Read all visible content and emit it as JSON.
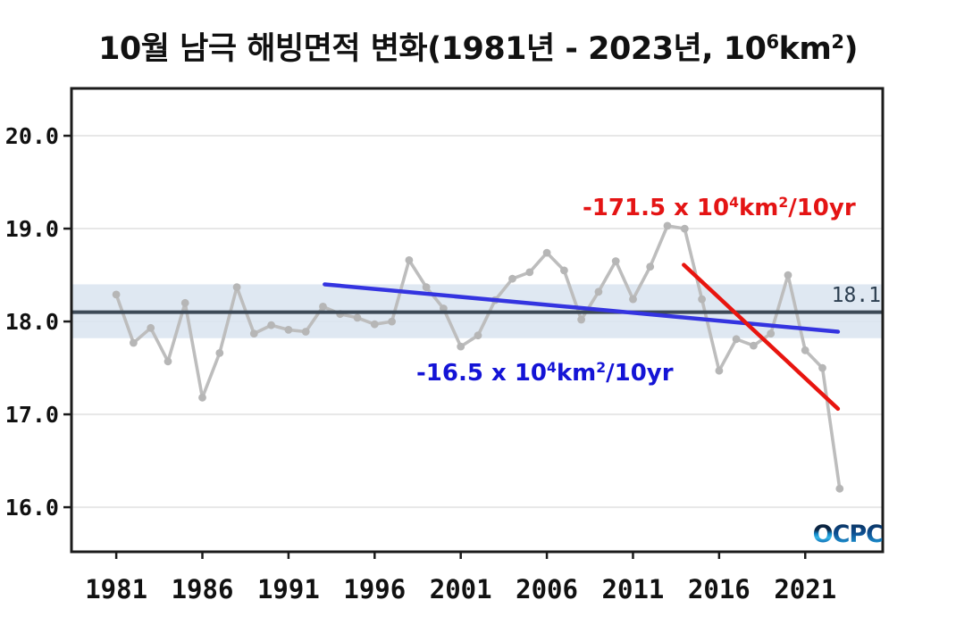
{
  "title": {
    "p1": "10월 남극 해빙면적 변화(1981년 - 2023년, 10",
    "sup1": "6",
    "p2": "km",
    "sup2": "2",
    "p3": ")"
  },
  "annotations": {
    "red": {
      "p1": "-171.5 x 10",
      "sup1": "4",
      "p2": "km",
      "sup2": "2",
      "p3": "/10yr"
    },
    "blue": {
      "p1": "-16.5 x 10",
      "sup1": "4",
      "p2": "km",
      "sup2": "2",
      "p3": "/10yr"
    },
    "mean_label": "18.1"
  },
  "logo": {
    "o": "O",
    "rest": "CPC"
  },
  "colors": {
    "series_line": "#bdbdbd",
    "marker": "#b6b6b6",
    "mean_line": "#3d4a57",
    "mean_label": "#2c3e50",
    "band": "#d9e4f0",
    "trend_blue": "#3434e0",
    "trend_red": "#e8150f",
    "text_blue": "#1414d6",
    "text_red": "#e41414",
    "grid": "#e7e7e7",
    "axis": "#1b1b1b",
    "tick_label": "#111111"
  },
  "chart_data": {
    "type": "line",
    "title": "10월 남극 해빙면적 변화(1981년 - 2023년, 10⁶km²)",
    "xlabel": "",
    "ylabel": "",
    "grid": "horizontal",
    "xlim": [
      1978.4,
      2025.5
    ],
    "ylim": [
      15.52,
      20.51
    ],
    "x": [
      1981,
      1982,
      1983,
      1984,
      1985,
      1986,
      1987,
      1988,
      1989,
      1990,
      1991,
      1992,
      1993,
      1994,
      1995,
      1996,
      1997,
      1998,
      1999,
      2000,
      2001,
      2002,
      2003,
      2004,
      2005,
      2006,
      2007,
      2008,
      2009,
      2010,
      2011,
      2012,
      2013,
      2014,
      2015,
      2016,
      2017,
      2018,
      2019,
      2020,
      2021,
      2022,
      2023
    ],
    "values": [
      18.29,
      17.77,
      17.93,
      17.57,
      18.2,
      17.18,
      17.66,
      18.37,
      17.87,
      17.96,
      17.91,
      17.89,
      18.16,
      18.08,
      18.04,
      17.97,
      18.0,
      18.66,
      18.37,
      18.14,
      17.73,
      17.85,
      18.23,
      18.46,
      18.53,
      18.74,
      18.55,
      18.02,
      18.32,
      18.65,
      18.24,
      18.59,
      19.03,
      19.0,
      18.24,
      17.47,
      17.81,
      17.74,
      17.87,
      18.5,
      17.69,
      17.5,
      16.2
    ],
    "mean": 18.1,
    "band": [
      17.82,
      18.4
    ],
    "trend_blue": {
      "x": [
        1993.1,
        2022.9
      ],
      "values": [
        18.4,
        17.89
      ],
      "label": "-16.5 x 10⁴km²/10yr"
    },
    "trend_red": {
      "x": [
        2013.95,
        2022.9
      ],
      "values": [
        18.61,
        17.06
      ],
      "label": "-171.5 x 10⁴km²/10yr"
    },
    "x_ticks": [
      1981,
      1986,
      1991,
      1996,
      2001,
      2006,
      2011,
      2016,
      2021
    ],
    "x_tick_labels": [
      "1981",
      "1986",
      "1991",
      "1996",
      "2001",
      "2006",
      "2011",
      "2016",
      "2021"
    ],
    "y_ticks": [
      20.0,
      19.0,
      18.0,
      17.0,
      16.0
    ],
    "y_tick_labels": [
      "20.0",
      "19.0",
      "18.0",
      "17.0",
      "16.0"
    ]
  }
}
